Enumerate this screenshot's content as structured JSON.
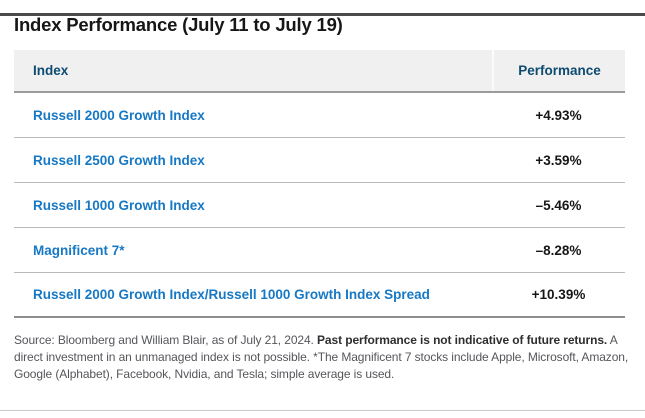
{
  "title": "Index Performance (July 11 to July 19)",
  "table": {
    "columns": [
      "Index",
      "Performance"
    ],
    "rows": [
      {
        "index": "Russell 2000 Growth Index",
        "performance": "+4.93%"
      },
      {
        "index": "Russell 2500 Growth Index",
        "performance": "+3.59%"
      },
      {
        "index": "Russell 1000 Growth Index",
        "performance": "–5.46%"
      },
      {
        "index": "Magnificent 7*",
        "performance": "–8.28%"
      },
      {
        "index": "Russell 2000 Growth Index/Russell 1000 Growth Index Spread",
        "performance": "+10.39%"
      }
    ]
  },
  "footnote": {
    "part1": "Source: Bloomberg and William Blair, as of July 21, 2024. ",
    "bold": "Past performance is not indicative of future returns.",
    "part2": " A direct investment in an unmanaged index is not possible. *The Magnificent 7 stocks include Apple, Microsoft, Amazon, Google (Alphabet), Facebook, Nvidia, and Tesla; simple average is used."
  },
  "colors": {
    "index_link_blue": "#1778c4",
    "header_navy": "#0d4c70",
    "header_background": "#f0f0f0",
    "top_bar": "#4a4a4a",
    "row_divider": "#b9b9b9",
    "strong_border": "#8d8d8d",
    "footnote_gray": "#55565a"
  }
}
